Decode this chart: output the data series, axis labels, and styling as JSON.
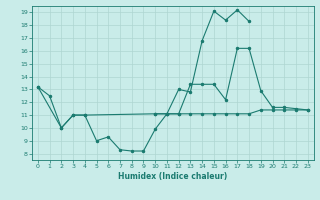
{
  "title": "",
  "xlabel": "Humidex (Indice chaleur)",
  "xlim": [
    -0.5,
    23.5
  ],
  "ylim": [
    7.5,
    19.5
  ],
  "yticks": [
    8,
    9,
    10,
    11,
    12,
    13,
    14,
    15,
    16,
    17,
    18,
    19
  ],
  "xticks": [
    0,
    1,
    2,
    3,
    4,
    5,
    6,
    7,
    8,
    9,
    10,
    11,
    12,
    13,
    14,
    15,
    16,
    17,
    18,
    19,
    20,
    21,
    22,
    23
  ],
  "bg_color": "#c9ece9",
  "grid_color": "#aed6d2",
  "line_color": "#1b7b70",
  "lines": [
    {
      "x": [
        0,
        1,
        2,
        3,
        4,
        5,
        6,
        7,
        8,
        9,
        10,
        11,
        12,
        13,
        14,
        15,
        16,
        17,
        18
      ],
      "y": [
        13.2,
        12.5,
        10.0,
        11.0,
        11.0,
        9.0,
        9.3,
        8.3,
        8.2,
        8.2,
        9.9,
        11.1,
        13.0,
        12.8,
        16.8,
        19.1,
        18.4,
        19.2,
        18.3
      ]
    },
    {
      "x": [
        0,
        2,
        3,
        4,
        10,
        11,
        12,
        13,
        14,
        15,
        16,
        17,
        18,
        19,
        20,
        21,
        22,
        23
      ],
      "y": [
        13.2,
        10.0,
        11.0,
        11.0,
        11.1,
        11.1,
        11.1,
        13.4,
        13.4,
        13.4,
        12.2,
        16.2,
        16.2,
        12.9,
        11.6,
        11.6,
        11.5,
        11.4
      ]
    },
    {
      "x": [
        10,
        11,
        12,
        13,
        14,
        15,
        16,
        17,
        18,
        19,
        20,
        21,
        22,
        23
      ],
      "y": [
        11.1,
        11.1,
        11.1,
        11.1,
        11.1,
        11.1,
        11.1,
        11.1,
        11.1,
        11.4,
        11.4,
        11.4,
        11.4,
        11.4
      ]
    }
  ]
}
